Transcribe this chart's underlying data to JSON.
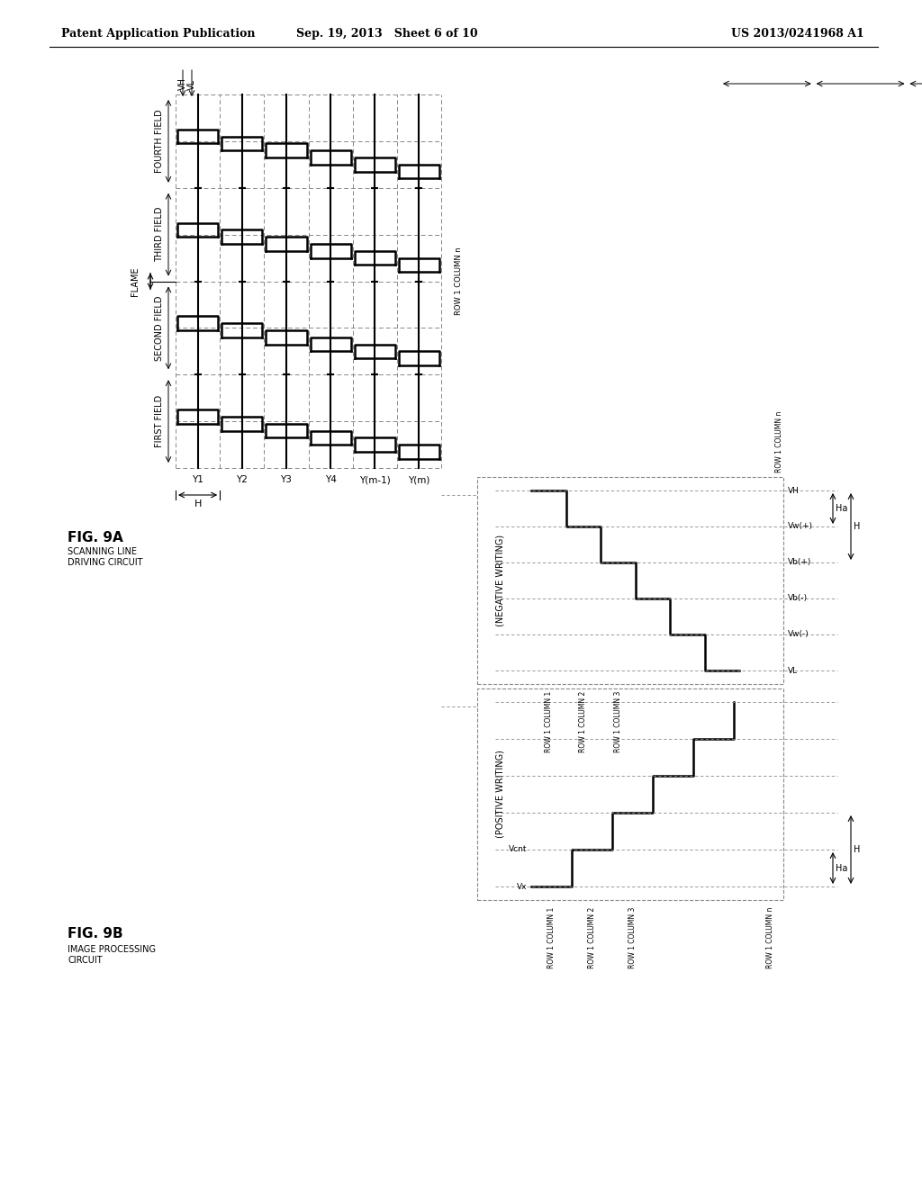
{
  "header_left": "Patent Application Publication",
  "header_mid": "Sep. 19, 2013   Sheet 6 of 10",
  "header_right": "US 2013/0241968 A1",
  "bg": "#ffffff",
  "lc": "#000000",
  "dc": "#888888",
  "fig9a_label": "FIG. 9A",
  "fig9a_sub1": "SCANNING LINE",
  "fig9a_sub2": "DRIVING CIRCUIT",
  "fig9b_label": "FIG. 9B",
  "fig9b_sub1": "IMAGE PROCESSING",
  "fig9b_sub2": "CIRCUIT",
  "y_labels": [
    "Y1",
    "Y2",
    "Y3",
    "Y4",
    "Y(m-1)",
    "Y(m)"
  ],
  "field_labels": [
    "FIRST FIELD",
    "SECOND FIELD",
    "THIRD FIELD",
    "FOURTH FIELD"
  ],
  "flame_label": "FLAME",
  "vh_label": "VH",
  "vl_label": "VL",
  "h_label": "H",
  "pos_writing": "(POSITIVE WRITING)",
  "neg_writing": "(NEGATIVE WRITING)",
  "voltage_pos": [
    "Vx",
    "Vcnt"
  ],
  "voltage_neg": [
    "VH",
    "Vw(+)",
    "Vb(+)",
    "Vb(-)",
    "Vw(-)",
    "VL"
  ],
  "row_col_pos": [
    "ROW 1 COLUMN 1",
    "ROW 1 COLUMN 2",
    "ROW 1 COLUMN 3"
  ],
  "row_col_neg": [
    "ROW 1 COLUMN 1",
    "ROW 1 COLUMN 2",
    "ROW 1 COLUMN 3"
  ],
  "row_col_n": "ROW 1 COLUMN n",
  "ha_label": "Ha",
  "h_label2": "H"
}
